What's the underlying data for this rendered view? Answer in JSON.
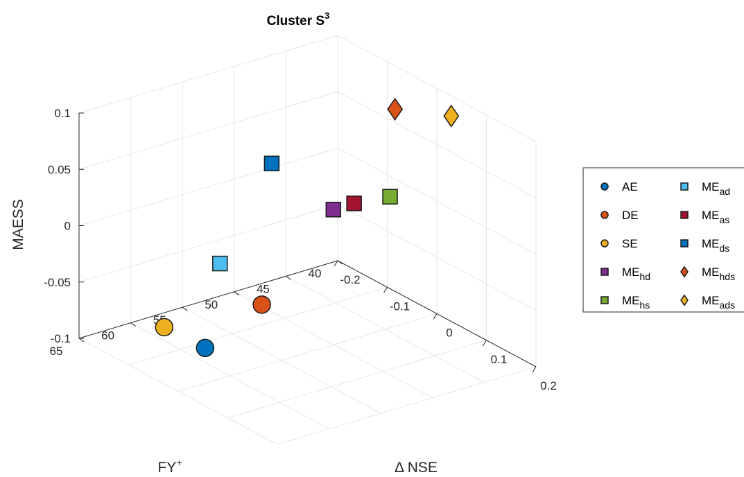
{
  "chart_data": {
    "type": "scatter",
    "title_main": "Cluster S",
    "title_sup": "3",
    "xlabel_main": "FY",
    "xlabel_sup": "+",
    "ylabel": "Δ NSE",
    "zlabel": "MAESS",
    "x_ticks": [
      "40",
      "45",
      "50",
      "55",
      "60",
      "65"
    ],
    "y_ticks": [
      "-0.2",
      "-0.1",
      "0",
      "0.1",
      "0.2"
    ],
    "z_ticks": [
      "-0.1",
      "-0.05",
      "0",
      "0.05",
      "0.1"
    ],
    "xlim": [
      40,
      65
    ],
    "ylim": [
      -0.2,
      0.2
    ],
    "zlim": [
      -0.1,
      0.1
    ],
    "grid": true,
    "legend_position": "right",
    "series": [
      {
        "name": "AE",
        "sub": "",
        "marker": "circle",
        "color": "#0072BD",
        "fy": 60,
        "dnse": -0.05,
        "maess": -0.087
      },
      {
        "name": "DE",
        "sub": "",
        "marker": "circle",
        "color": "#D95319",
        "fy": 55,
        "dnse": -0.04,
        "maess": -0.06
      },
      {
        "name": "SE",
        "sub": "",
        "marker": "circle",
        "color": "#EDB120",
        "fy": 63,
        "dnse": -0.07,
        "maess": -0.065
      },
      {
        "name": "ME",
        "sub": "hd",
        "marker": "square",
        "color": "#7E2F8E",
        "fy": 50,
        "dnse": 0.0,
        "maess": 0.02
      },
      {
        "name": "ME",
        "sub": "hs",
        "marker": "square",
        "color": "#77AC30",
        "fy": 45,
        "dnse": 0.01,
        "maess": 0.02
      },
      {
        "name": "ME",
        "sub": "ad",
        "marker": "square",
        "color": "#4DBEEE",
        "fy": 60,
        "dnse": -0.02,
        "maess": -0.005
      },
      {
        "name": "ME",
        "sub": "as",
        "marker": "square",
        "color": "#A2142F",
        "fy": 48,
        "dnse": 0.0,
        "maess": 0.02
      },
      {
        "name": "ME",
        "sub": "ds",
        "marker": "square",
        "color": "#0072BD",
        "fy": 55,
        "dnse": -0.02,
        "maess": 0.07
      },
      {
        "name": "ME",
        "sub": "hds",
        "marker": "diamond",
        "color": "#D95319",
        "fy": 45,
        "dnse": 0.02,
        "maess": 0.1
      },
      {
        "name": "ME",
        "sub": "ads",
        "marker": "diamond",
        "color": "#EDB120",
        "fy": 41,
        "dnse": 0.05,
        "maess": 0.09
      }
    ]
  }
}
